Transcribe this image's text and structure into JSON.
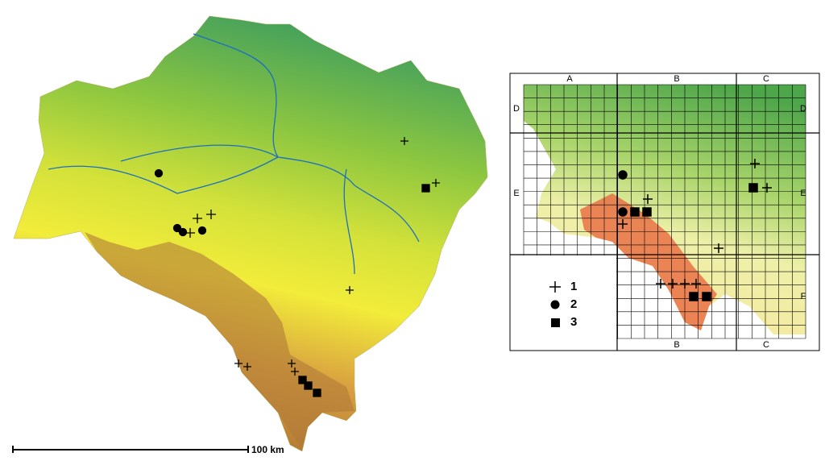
{
  "left_map": {
    "scale_label": "100 km"
  },
  "grid_map": {
    "top_labels": [
      "A",
      "B",
      "C"
    ],
    "bottom_labels": [
      "B",
      "C"
    ],
    "left_labels": [
      "D",
      "E"
    ],
    "right_labels": [
      "D",
      "E",
      "F"
    ]
  },
  "legend": {
    "items": [
      "1",
      "2",
      "3"
    ]
  }
}
